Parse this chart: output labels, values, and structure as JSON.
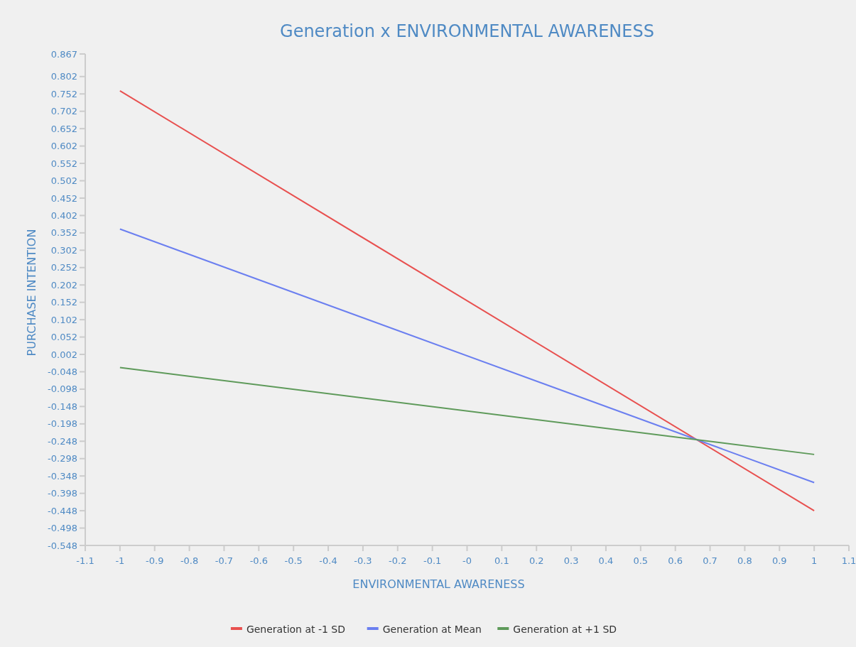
{
  "chart_data": {
    "type": "line",
    "title": "Generation x ENVIRONMENTAL AWARENESS",
    "xlabel": "ENVIRONMENTAL AWARENESS",
    "ylabel": "PURCHASE INTENTION",
    "x": [
      -1,
      1
    ],
    "series": [
      {
        "name": "Generation at -1 SD",
        "color": "#e8504f",
        "values": [
          0.761,
          -0.448
        ]
      },
      {
        "name": "Generation at Mean",
        "color": "#6b7ff0",
        "values": [
          0.363,
          -0.367
        ]
      },
      {
        "name": "Generation at +1 SD",
        "color": "#5e9a5a",
        "values": [
          -0.036,
          -0.286
        ]
      }
    ],
    "xlim": [
      -1.1,
      1.1
    ],
    "xticks": [
      -1.1,
      -1,
      -0.9,
      -0.8,
      -0.7,
      -0.6,
      -0.5,
      -0.4,
      -0.3,
      -0.2,
      -0.1,
      {
        "value": 0,
        "label": "-0"
      },
      0.1,
      0.2,
      0.3,
      0.4,
      0.5,
      0.6,
      0.7,
      0.8,
      0.9,
      1,
      1.1
    ],
    "ylim": [
      -0.548,
      0.867
    ],
    "yticks": [
      -0.548,
      -0.498,
      -0.448,
      -0.398,
      -0.348,
      -0.298,
      -0.248,
      -0.198,
      -0.148,
      -0.098,
      -0.048,
      0.002,
      0.052,
      0.102,
      0.152,
      0.202,
      0.252,
      0.302,
      0.352,
      0.402,
      0.452,
      0.502,
      0.552,
      0.602,
      0.652,
      0.702,
      0.752,
      0.802,
      0.867
    ],
    "legend": "bottom",
    "grid": false,
    "marker": "none",
    "line_style": "solid"
  }
}
